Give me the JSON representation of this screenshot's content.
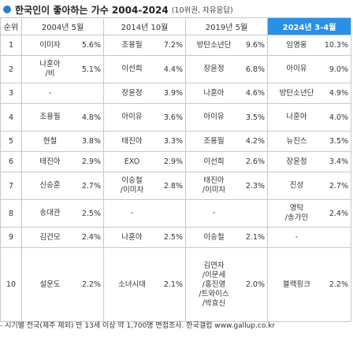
{
  "header": {
    "title": "한국인이 좋아하는 가수 2004-2024",
    "subtitle": "(10위권, 자유응답)"
  },
  "chart_data": {
    "type": "table",
    "columns": [
      "순위",
      "2004년 5월",
      "2014년 10월",
      "2019년 5월",
      "2024년 3-4월"
    ],
    "highlight_column": "2024년 3-4월",
    "highlight_color": "#2a8fe6",
    "rows": [
      {
        "rank": "1",
        "cells": [
          {
            "name": "이미자",
            "pct": "5.6%"
          },
          {
            "name": "조용필",
            "pct": "7.2%"
          },
          {
            "name": "방탄소년단",
            "pct": "9.6%"
          },
          {
            "name": "임영웅",
            "pct": "10.3%"
          }
        ]
      },
      {
        "rank": "2",
        "cells": [
          {
            "name": "나훈아\n/비",
            "pct": "5.1%"
          },
          {
            "name": "이선희",
            "pct": "4.4%"
          },
          {
            "name": "장윤정",
            "pct": "6.8%"
          },
          {
            "name": "아이유",
            "pct": "9.0%"
          }
        ]
      },
      {
        "rank": "3",
        "cells": [
          {
            "name": "-",
            "pct": ""
          },
          {
            "name": "장윤정",
            "pct": "3.9%"
          },
          {
            "name": "나훈아",
            "pct": "4.6%"
          },
          {
            "name": "방탄소년단",
            "pct": "4.9%"
          }
        ]
      },
      {
        "rank": "4",
        "cells": [
          {
            "name": "조용필",
            "pct": "4.8%"
          },
          {
            "name": "아이유",
            "pct": "3.6%"
          },
          {
            "name": "아이유",
            "pct": "3.5%"
          },
          {
            "name": "나훈아",
            "pct": "4.0%"
          }
        ]
      },
      {
        "rank": "5",
        "cells": [
          {
            "name": "현철",
            "pct": "3.8%"
          },
          {
            "name": "태진아",
            "pct": "3.3%"
          },
          {
            "name": "조용필",
            "pct": "4.2%"
          },
          {
            "name": "뉴진스",
            "pct": "3.5%"
          }
        ]
      },
      {
        "rank": "6",
        "cells": [
          {
            "name": "태진아",
            "pct": "2.9%"
          },
          {
            "name": "EXO",
            "pct": "2.9%"
          },
          {
            "name": "이선희",
            "pct": "2.6%"
          },
          {
            "name": "장윤정",
            "pct": "3.4%"
          }
        ]
      },
      {
        "rank": "7",
        "cells": [
          {
            "name": "신승훈",
            "pct": "2.7%"
          },
          {
            "name": "이승철\n/이미자",
            "pct": "2.8%"
          },
          {
            "name": "태진아\n/이미자",
            "pct": "2.3%"
          },
          {
            "name": "진성",
            "pct": "2.7%"
          }
        ]
      },
      {
        "rank": "8",
        "cells": [
          {
            "name": "송대관",
            "pct": "2.5%"
          },
          {
            "name": "-",
            "pct": ""
          },
          {
            "name": "-",
            "pct": ""
          },
          {
            "name": "영탁\n/송가인",
            "pct": "2.4%"
          }
        ]
      },
      {
        "rank": "9",
        "cells": [
          {
            "name": "김건모",
            "pct": "2.4%"
          },
          {
            "name": "나훈아",
            "pct": "2.5%"
          },
          {
            "name": "이승철",
            "pct": "2.1%"
          },
          {
            "name": "-",
            "pct": ""
          }
        ]
      },
      {
        "rank": "10",
        "cells": [
          {
            "name": "설운도",
            "pct": "2.2%"
          },
          {
            "name": "소녀시대",
            "pct": "2.1%"
          },
          {
            "name": "김연자\n/이문세\n/홍진영\n/트와이스\n/박효신",
            "pct": "2.0%"
          },
          {
            "name": "블랙핑크",
            "pct": "2.2%"
          }
        ]
      }
    ]
  },
  "footnote": "- 시기별 전국(제주 제외) 만 13세 이상 약 1,700명 면접조사. 한국갤럽 www.gallup.co.kr"
}
